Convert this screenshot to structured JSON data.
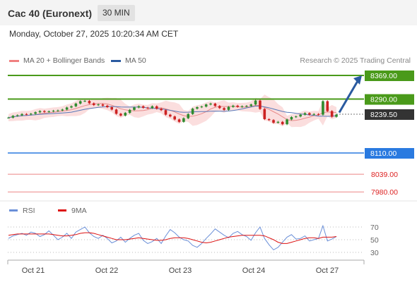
{
  "header": {
    "instrument": "Cac 40 (Euronext)",
    "interval": "30 MIN",
    "datetime": "Monday, October 27, 2025 10:20:34 AM CET"
  },
  "legend": {
    "items": [
      {
        "label": "MA 20 + Bollinger Bands",
        "color": "#f08080"
      },
      {
        "label": "MA 50",
        "color": "#2a5aa0"
      }
    ],
    "credit": "Research © 2025 Trading Central"
  },
  "chart_data": [
    {
      "type": "line",
      "title": "",
      "price_axis_range": [
        7960,
        8390
      ],
      "x": [
        "Oct 21",
        "Oct 22",
        "Oct 23",
        "Oct 24",
        "Oct 27"
      ],
      "levels": [
        {
          "value": 8369.0,
          "label": "8369.00",
          "kind": "resistance",
          "color": "#4a9a1a"
        },
        {
          "value": 8290.0,
          "label": "8290.00",
          "kind": "resistance",
          "color": "#4a9a1a"
        },
        {
          "value": 8239.5,
          "label": "8239.50",
          "kind": "last-price",
          "color": "#333333"
        },
        {
          "value": 8110.0,
          "label": "8110.00",
          "kind": "pivot",
          "color": "#2a7ae0"
        },
        {
          "value": 8039.0,
          "label": "8039.00",
          "kind": "support",
          "color": "#dd2222"
        },
        {
          "value": 7980.0,
          "label": "7980.00",
          "kind": "support",
          "color": "#dd2222"
        }
      ],
      "price_series": [
        8228,
        8234,
        8236,
        8240,
        8239,
        8241,
        8246,
        8250,
        8247,
        8249,
        8251,
        8252,
        8255,
        8262,
        8266,
        8275,
        8283,
        8284,
        8276,
        8270,
        8272,
        8268,
        8263,
        8255,
        8241,
        8235,
        8244,
        8254,
        8262,
        8266,
        8261,
        8260,
        8266,
        8258,
        8253,
        8238,
        8232,
        8222,
        8214,
        8226,
        8240,
        8258,
        8263,
        8265,
        8272,
        8275,
        8267,
        8260,
        8254,
        8264,
        8268,
        8264,
        8266,
        8267,
        8272,
        8285,
        8257,
        8223,
        8220,
        8211,
        8214,
        8206,
        8222,
        8230,
        8232,
        8238,
        8243,
        8238,
        8240,
        8238,
        8283,
        8250,
        8231,
        8238
      ],
      "forecast_target": 8369.0
    },
    {
      "type": "line",
      "title": "",
      "ylim": [
        20,
        80
      ],
      "y_ticks": [
        "70",
        "50",
        "30"
      ],
      "series": [
        {
          "name": "RSI",
          "color": "#6a8fd8",
          "values": [
            52,
            56,
            58,
            60,
            57,
            62,
            60,
            55,
            58,
            64,
            57,
            50,
            54,
            60,
            52,
            62,
            66,
            70,
            61,
            55,
            52,
            57,
            52,
            45,
            48,
            54,
            46,
            52,
            57,
            60,
            49,
            44,
            47,
            52,
            44,
            56,
            66,
            61,
            54,
            50,
            48,
            41,
            38,
            44,
            52,
            59,
            67,
            62,
            57,
            53,
            60,
            63,
            58,
            55,
            49,
            61,
            70,
            52,
            42,
            34,
            38,
            46,
            54,
            58,
            51,
            52,
            56,
            48,
            50,
            52,
            72,
            48,
            51,
            55
          ]
        },
        {
          "name": "9MA",
          "color": "#dd1111",
          "values": [
            57,
            58,
            59,
            59,
            59,
            59,
            59,
            59,
            59,
            59,
            58,
            57,
            56,
            56,
            57,
            58,
            60,
            61,
            61,
            60,
            58,
            56,
            54,
            52,
            50,
            50,
            50,
            51,
            52,
            53,
            52,
            51,
            50,
            49,
            49,
            50,
            52,
            53,
            53,
            53,
            52,
            50,
            48,
            46,
            45,
            46,
            48,
            50,
            52,
            54,
            55,
            56,
            57,
            57,
            57,
            57,
            57,
            56,
            53,
            50,
            46,
            44,
            44,
            46,
            48,
            50,
            52,
            53,
            53,
            52,
            54,
            54,
            54,
            55
          ]
        }
      ]
    }
  ]
}
